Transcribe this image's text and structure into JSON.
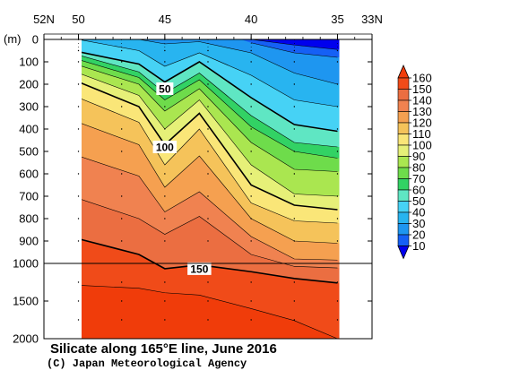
{
  "chart_data": {
    "type": "heatmap",
    "title": "Silicate along 165°E line, June 2016",
    "credit": "(C) Japan Meteorological Agency",
    "ylabel": "(m)",
    "x_ticks": [
      {
        "lat": 52,
        "label": "52N"
      },
      {
        "lat": 50,
        "label": "50"
      },
      {
        "lat": 45,
        "label": "45"
      },
      {
        "lat": 40,
        "label": "40"
      },
      {
        "lat": 35,
        "label": "35"
      },
      {
        "lat": 33,
        "label": "33N"
      }
    ],
    "y_ticks_upper": [
      {
        "depth": 0,
        "label": "0"
      },
      {
        "depth": 100,
        "label": "100"
      },
      {
        "depth": 200,
        "label": "200"
      },
      {
        "depth": 300,
        "label": "300"
      },
      {
        "depth": 400,
        "label": "400"
      },
      {
        "depth": 500,
        "label": "500"
      },
      {
        "depth": 600,
        "label": "600"
      },
      {
        "depth": 700,
        "label": "700"
      },
      {
        "depth": 800,
        "label": "800"
      },
      {
        "depth": 900,
        "label": "900"
      },
      {
        "depth": 1000,
        "label": "1000"
      }
    ],
    "y_ticks_lower": [
      {
        "depth": 1500,
        "label": "1500"
      },
      {
        "depth": 2000,
        "label": "2000"
      }
    ],
    "xlim": [
      52,
      33
    ],
    "data_lat_range": [
      50,
      35
    ],
    "ylim_upper": [
      0,
      1000
    ],
    "ylim_lower": [
      1000,
      2000
    ],
    "contour_levels": [
      10,
      20,
      30,
      40,
      50,
      60,
      70,
      80,
      90,
      100,
      110,
      120,
      130,
      140,
      150,
      160
    ],
    "bold_levels": [
      50,
      100,
      150
    ],
    "contour_labels": [
      {
        "value": 50,
        "text": "50",
        "lat": 45,
        "depth": 220
      },
      {
        "value": 100,
        "text": "100",
        "lat": 45,
        "depth": 480
      },
      {
        "value": 150,
        "text": "150",
        "lat": 43,
        "depth": 1070
      }
    ],
    "colorbar": {
      "labels": [
        "10",
        "20",
        "30",
        "40",
        "50",
        "60",
        "70",
        "80",
        "90",
        "100",
        "110",
        "120",
        "130",
        "140",
        "150",
        "160"
      ],
      "colors": [
        "#0000ee",
        "#1560f5",
        "#1e96f0",
        "#28b4f0",
        "#46d2f5",
        "#5fe6c3",
        "#32d264",
        "#6edc4b",
        "#aae650",
        "#e6f078",
        "#fae678",
        "#f5c35a",
        "#f5a050",
        "#f08250",
        "#eb6e41",
        "#f04b19",
        "#f03c0a"
      ]
    },
    "contour_depths": {
      "lat": [
        50,
        46.5,
        45,
        43,
        40,
        37.5,
        35
      ],
      "lines": [
        {
          "value": 10,
          "depths": [
            null,
            null,
            null,
            null,
            0,
            25,
            45
          ]
        },
        {
          "value": 20,
          "depths": [
            null,
            null,
            null,
            null,
            15,
            60,
            80
          ]
        },
        {
          "value": 30,
          "depths": [
            null,
            0,
            20,
            10,
            60,
            150,
            200
          ]
        },
        {
          "value": 40,
          "depths": [
            0,
            50,
            120,
            60,
            160,
            270,
            300
          ]
        },
        {
          "value": 50,
          "depths": [
            55,
            110,
            190,
            100,
            260,
            380,
            410
          ]
        },
        {
          "value": 60,
          "depths": [
            70,
            145,
            240,
            150,
            340,
            460,
            480
          ]
        },
        {
          "value": 70,
          "depths": [
            90,
            170,
            270,
            180,
            390,
            500,
            530
          ]
        },
        {
          "value": 80,
          "depths": [
            115,
            200,
            320,
            220,
            460,
            580,
            590
          ]
        },
        {
          "value": 90,
          "depths": [
            150,
            250,
            400,
            270,
            560,
            690,
            700
          ]
        },
        {
          "value": 100,
          "depths": [
            190,
            300,
            470,
            330,
            650,
            740,
            760
          ]
        },
        {
          "value": 110,
          "depths": [
            260,
            370,
            560,
            400,
            730,
            810,
            820
          ]
        },
        {
          "value": 120,
          "depths": [
            370,
            470,
            660,
            520,
            800,
            900,
            910
          ]
        },
        {
          "value": 130,
          "depths": [
            520,
            610,
            770,
            680,
            880,
            980,
            985
          ]
        },
        {
          "value": 140,
          "depths": [
            710,
            800,
            870,
            790,
            960,
            1040,
            1060
          ]
        },
        {
          "value": 150,
          "depths": [
            890,
            960,
            1070,
            1020,
            1110,
            1200,
            1260
          ]
        },
        {
          "value": 160,
          "depths": [
            1290,
            1330,
            1390,
            1420,
            1600,
            1760,
            2000
          ]
        }
      ]
    },
    "grid": true,
    "legend": "right"
  }
}
